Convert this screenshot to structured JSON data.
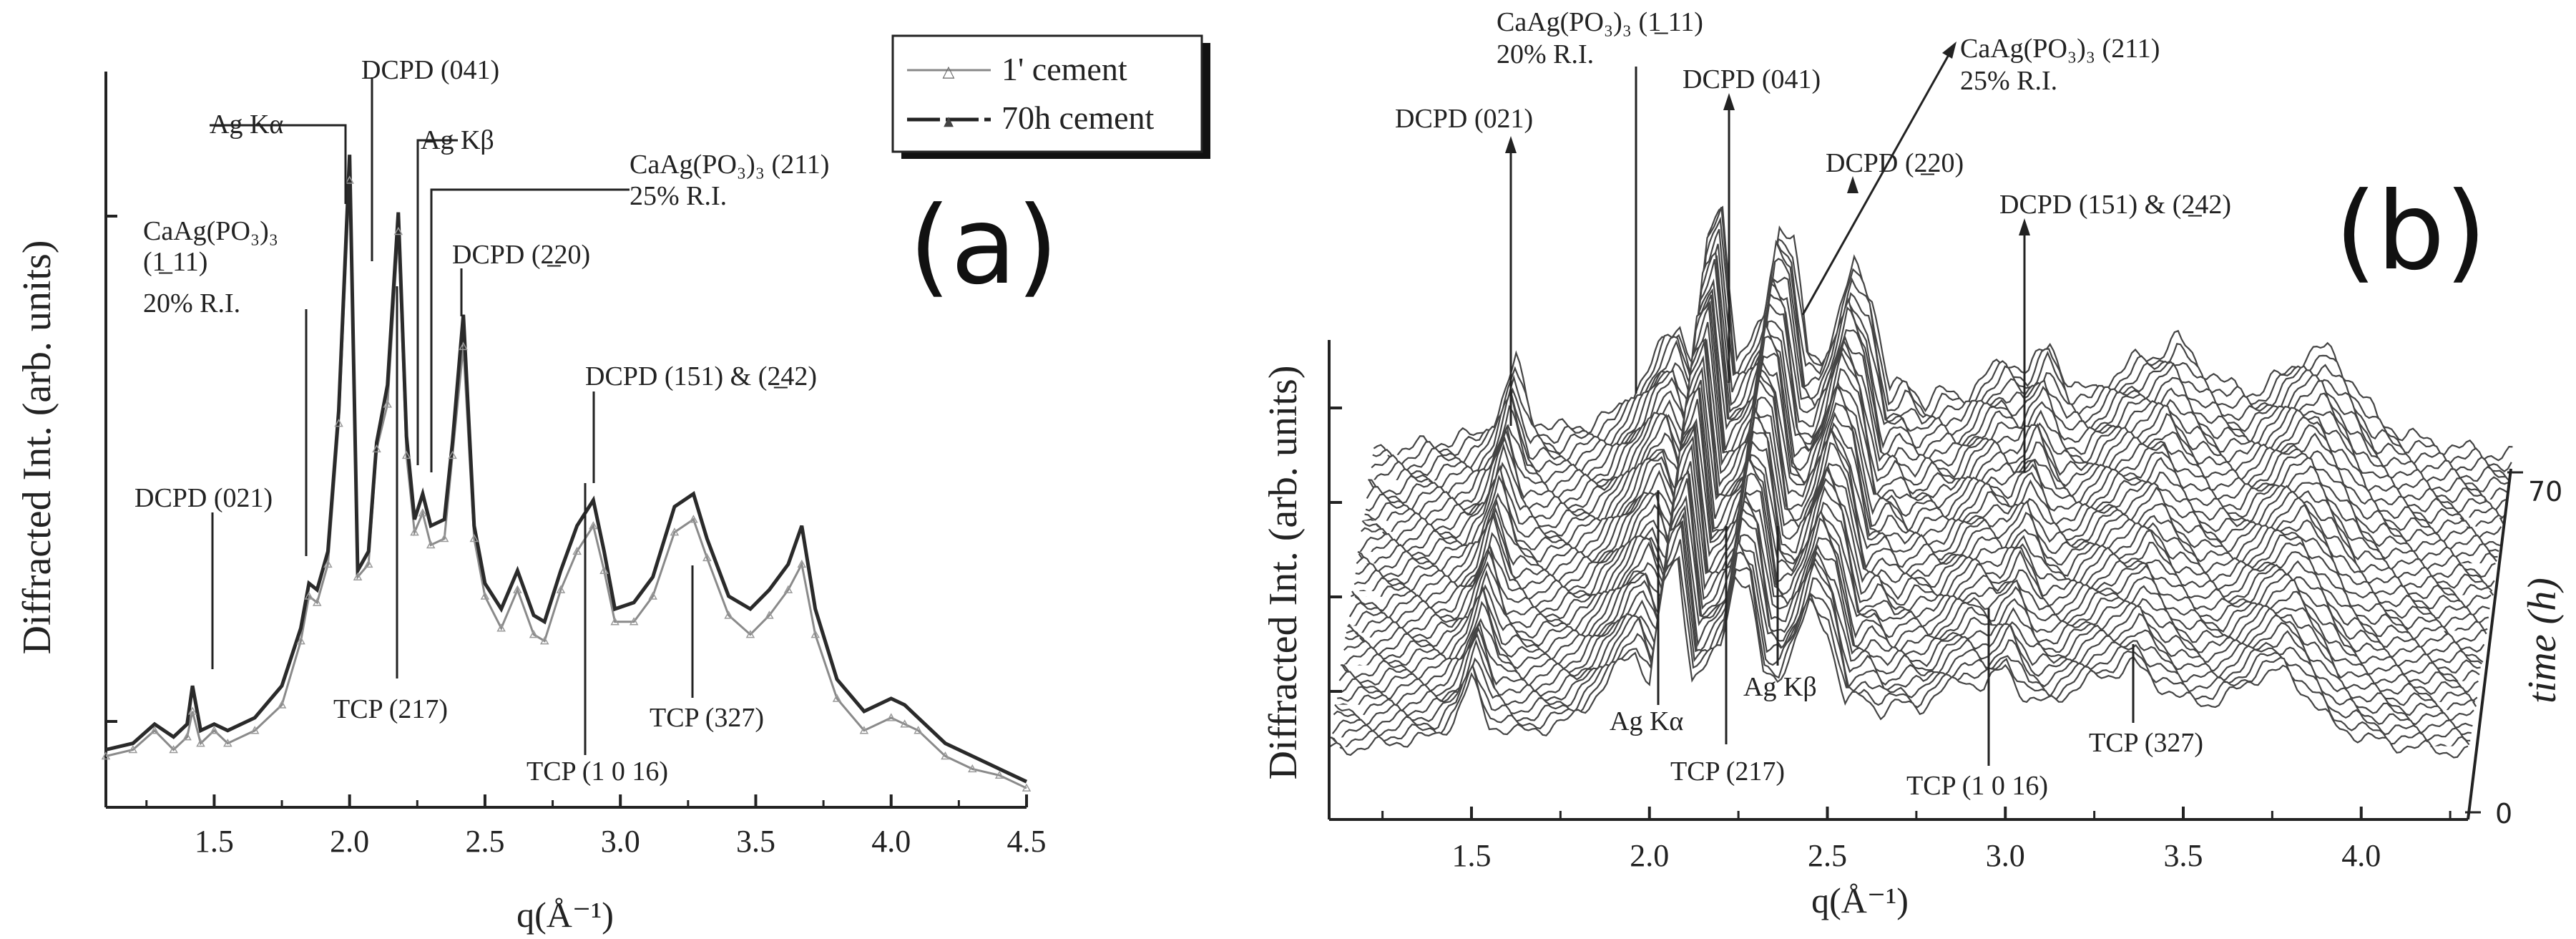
{
  "chart_data": [
    {
      "type": "line",
      "panel_label": "(a)",
      "xlabel": "q(Å⁻¹)",
      "ylabel": "Diffracted Int. (arb. units)",
      "xlim": [
        1.1,
        4.5
      ],
      "ylim": [
        0,
        1.15
      ],
      "xticks": [
        1.5,
        2.0,
        2.5,
        3.0,
        3.5,
        4.0,
        4.5
      ],
      "xtick_labels": [
        "1.5",
        "2.0",
        "2.5",
        "3.0",
        "3.5",
        "4.0",
        "4.5"
      ],
      "legend": [
        "1' cement",
        "70h cement"
      ],
      "series": [
        {
          "name": "1' cement",
          "x": [
            1.1,
            1.2,
            1.28,
            1.35,
            1.4,
            1.42,
            1.45,
            1.5,
            1.55,
            1.65,
            1.75,
            1.82,
            1.85,
            1.88,
            1.92,
            1.96,
            2.0,
            2.03,
            2.07,
            2.1,
            2.14,
            2.18,
            2.21,
            2.24,
            2.27,
            2.3,
            2.35,
            2.38,
            2.42,
            2.46,
            2.5,
            2.56,
            2.62,
            2.68,
            2.72,
            2.78,
            2.84,
            2.9,
            2.94,
            2.98,
            3.05,
            3.12,
            3.2,
            3.27,
            3.32,
            3.4,
            3.48,
            3.55,
            3.62,
            3.67,
            3.72,
            3.8,
            3.9,
            4.0,
            4.05,
            4.1,
            4.2,
            4.3,
            4.4,
            4.5
          ],
          "y": [
            0.08,
            0.09,
            0.12,
            0.09,
            0.11,
            0.15,
            0.1,
            0.12,
            0.1,
            0.12,
            0.16,
            0.26,
            0.33,
            0.32,
            0.38,
            0.6,
            0.98,
            0.36,
            0.38,
            0.56,
            0.63,
            0.9,
            0.55,
            0.43,
            0.46,
            0.41,
            0.42,
            0.55,
            0.72,
            0.42,
            0.33,
            0.28,
            0.34,
            0.27,
            0.26,
            0.34,
            0.4,
            0.44,
            0.37,
            0.29,
            0.29,
            0.33,
            0.43,
            0.45,
            0.39,
            0.3,
            0.27,
            0.3,
            0.34,
            0.38,
            0.27,
            0.17,
            0.12,
            0.14,
            0.13,
            0.12,
            0.08,
            0.06,
            0.05,
            0.03
          ]
        },
        {
          "name": "70h cement",
          "x": [
            1.1,
            1.2,
            1.28,
            1.35,
            1.4,
            1.42,
            1.45,
            1.5,
            1.55,
            1.65,
            1.75,
            1.82,
            1.85,
            1.88,
            1.92,
            1.96,
            2.0,
            2.03,
            2.07,
            2.1,
            2.14,
            2.18,
            2.21,
            2.24,
            2.27,
            2.3,
            2.35,
            2.38,
            2.42,
            2.46,
            2.5,
            2.56,
            2.62,
            2.68,
            2.72,
            2.78,
            2.84,
            2.9,
            2.94,
            2.98,
            3.05,
            3.12,
            3.2,
            3.27,
            3.32,
            3.4,
            3.48,
            3.55,
            3.62,
            3.67,
            3.72,
            3.8,
            3.9,
            4.0,
            4.05,
            4.1,
            4.2,
            4.3,
            4.4,
            4.5
          ],
          "y": [
            0.09,
            0.1,
            0.13,
            0.11,
            0.13,
            0.19,
            0.12,
            0.13,
            0.12,
            0.14,
            0.19,
            0.28,
            0.35,
            0.34,
            0.4,
            0.62,
            1.02,
            0.37,
            0.4,
            0.57,
            0.66,
            0.93,
            0.58,
            0.45,
            0.49,
            0.44,
            0.45,
            0.57,
            0.77,
            0.44,
            0.35,
            0.31,
            0.37,
            0.3,
            0.29,
            0.37,
            0.44,
            0.48,
            0.4,
            0.31,
            0.32,
            0.36,
            0.47,
            0.49,
            0.42,
            0.33,
            0.31,
            0.34,
            0.38,
            0.44,
            0.31,
            0.2,
            0.15,
            0.17,
            0.16,
            0.14,
            0.1,
            0.08,
            0.06,
            0.04
          ]
        }
      ],
      "annotations": [
        {
          "id": "ag-ka",
          "line1": "Ag Kα",
          "line2": "",
          "line3": "",
          "line4": "",
          "q": 2.0
        },
        {
          "id": "dcpd-041",
          "line1": "DCPD (041)",
          "line2": "",
          "line3": "",
          "line4": "",
          "q": 2.1
        },
        {
          "id": "ag-kb",
          "line1": "Ag Kβ",
          "line2": "",
          "line3": "",
          "line4": "",
          "q": 2.25
        },
        {
          "id": "caag-211",
          "line1": "CaAg(PO₃)₃ (211)",
          "line2": "25% R.I.",
          "line3": "",
          "line4": "",
          "q": 2.3
        },
        {
          "id": "caag-111",
          "line1": "CaAg(PO₃)₃",
          "line2": "(1̲ 11)",
          "line3": "20% R.I.",
          "line4": "",
          "q": 1.85
        },
        {
          "id": "dcpd-220",
          "line1": "DCPD (2̲20)",
          "line2": "",
          "line3": "",
          "line4": "",
          "q": 2.42
        },
        {
          "id": "dcpd-021",
          "line1": "DCPD (021)",
          "line2": "",
          "line3": "",
          "line4": "",
          "q": 1.5
        },
        {
          "id": "dcpd-151",
          "line1": "DCPD (151) & (2̲42)",
          "line2": "",
          "line3": "",
          "line4": "",
          "q": 2.9
        },
        {
          "id": "tcp-217",
          "line1": "TCP (217)",
          "line2": "",
          "line3": "",
          "line4": "",
          "q": 2.18
        },
        {
          "id": "tcp-327",
          "line1": "TCP (327)",
          "line2": "",
          "line3": "",
          "line4": "",
          "q": 3.29
        },
        {
          "id": "tcp-1016",
          "line1": "TCP (1 0 16)",
          "line2": "",
          "line3": "",
          "line4": "",
          "q": 2.88
        }
      ]
    },
    {
      "type": "line",
      "subtype": "waterfall",
      "panel_label": "(b)",
      "xlabel": "q(Å⁻¹)",
      "ylabel": "Diffracted Int. (arb. units)",
      "zlabel": "time (h)",
      "xlim": [
        1.1,
        4.3
      ],
      "xticks": [
        1.5,
        2.0,
        2.5,
        3.0,
        3.5,
        4.0
      ],
      "xtick_labels": [
        "1.5",
        "2.0",
        "2.5",
        "3.0",
        "3.5",
        "4.0"
      ],
      "zlim": [
        0,
        70
      ],
      "zticks": [
        0,
        70
      ],
      "ztick_labels": [
        "0",
        "70"
      ],
      "n_traces": 40,
      "profile": {
        "x": [
          1.1,
          1.2,
          1.3,
          1.4,
          1.45,
          1.5,
          1.55,
          1.62,
          1.7,
          1.78,
          1.84,
          1.88,
          1.92,
          1.96,
          2.0,
          2.04,
          2.08,
          2.12,
          2.16,
          2.2,
          2.24,
          2.28,
          2.32,
          2.36,
          2.4,
          2.45,
          2.5,
          2.55,
          2.6,
          2.65,
          2.7,
          2.76,
          2.82,
          2.88,
          2.94,
          3.0,
          3.06,
          3.12,
          3.18,
          3.24,
          3.3,
          3.36,
          3.42,
          3.5,
          3.58,
          3.65,
          3.72,
          3.78,
          3.85,
          3.92,
          4.0,
          4.1,
          4.2,
          4.3
        ],
        "y": [
          0.08,
          0.09,
          0.12,
          0.14,
          0.22,
          0.42,
          0.2,
          0.16,
          0.18,
          0.22,
          0.32,
          0.4,
          0.5,
          0.55,
          0.4,
          0.88,
          1.0,
          0.42,
          0.48,
          0.58,
          0.92,
          0.86,
          0.45,
          0.42,
          0.55,
          0.78,
          0.66,
          0.3,
          0.34,
          0.26,
          0.3,
          0.28,
          0.36,
          0.42,
          0.38,
          0.48,
          0.32,
          0.3,
          0.36,
          0.42,
          0.44,
          0.5,
          0.4,
          0.32,
          0.3,
          0.36,
          0.44,
          0.46,
          0.34,
          0.2,
          0.14,
          0.1,
          0.08,
          0.06
        ]
      },
      "annotations": [
        {
          "id": "caag-111",
          "line1": "CaAg(PO₃)₃ (1̲ 11)",
          "line2": "20% R.I.",
          "line3": "",
          "line4": "",
          "q": 1.95
        },
        {
          "id": "dcpd-021",
          "line1": "DCPD (021)",
          "line2": "",
          "line3": "",
          "line4": "",
          "q": 1.6
        },
        {
          "id": "dcpd-041",
          "line1": "DCPD (041)",
          "line2": "",
          "line3": "",
          "line4": "",
          "q": 2.25
        },
        {
          "id": "caag-211",
          "line1": "CaAg(PO₃)₃ (211)",
          "line2": "25% R.I.",
          "line3": "",
          "line4": "",
          "q": 2.38
        },
        {
          "id": "dcpd-220",
          "line1": "DCPD (2̲20)",
          "line2": "",
          "line3": "",
          "line4": "",
          "q": 2.52
        },
        {
          "id": "dcpd-151",
          "line1": "DCPD (151) & (2̲42)",
          "line2": "",
          "line3": "",
          "line4": "",
          "q": 2.98
        },
        {
          "id": "ag-ka",
          "line1": "Ag Kα",
          "line2": "",
          "line3": "",
          "line4": "",
          "q": 2.0
        },
        {
          "id": "ag-kb",
          "line1": "Ag Kβ",
          "line2": "",
          "line3": "",
          "line4": "",
          "q": 2.24
        },
        {
          "id": "tcp-217",
          "line1": "TCP (217)",
          "line2": "",
          "line3": "",
          "line4": "",
          "q": 2.18
        },
        {
          "id": "tcp-1016",
          "line1": "TCP (1 0 16)",
          "line2": "",
          "line3": "",
          "line4": "",
          "q": 2.86
        },
        {
          "id": "tcp-327",
          "line1": "TCP (327)",
          "line2": "",
          "line3": "",
          "line4": "",
          "q": 3.3
        }
      ]
    }
  ]
}
